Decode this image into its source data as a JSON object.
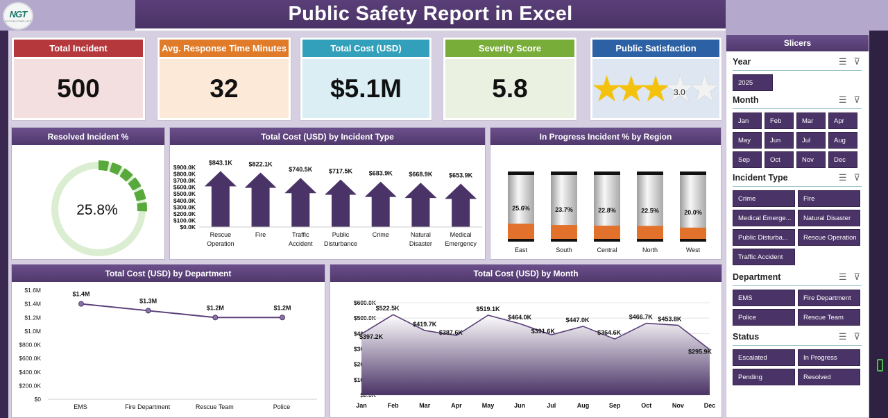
{
  "title": "Public Safety Report in Excel",
  "logo": {
    "text": "NGT",
    "subtext": "NEXTGEN TEMPLATES"
  },
  "kpis": [
    {
      "label": "Total Incident",
      "value": "500",
      "color": "#b5383d",
      "bg": "#f4dfe0"
    },
    {
      "label": "Avg. Response Time Minutes",
      "value": "32",
      "color": "#e07b2a",
      "bg": "#fde9d8"
    },
    {
      "label": "Total Cost (USD)",
      "value": "$5.1M",
      "color": "#33a0bb",
      "bg": "#daeef4"
    },
    {
      "label": "Severity Score",
      "value": "5.8",
      "color": "#79ad3a",
      "bg": "#eaf1e1"
    },
    {
      "label": "Public Satisfaction",
      "value": "3.0",
      "color": "#2d61a5",
      "bg": "#dde6f1",
      "stars": 3,
      "max_stars": 5
    }
  ],
  "panels": {
    "resolved": {
      "title": "Resolved Incident %",
      "value": "25.8%",
      "fraction": 0.258
    },
    "type": {
      "title": "Total Cost (USD) by Incident Type"
    },
    "region": {
      "title": "In Progress Incident % by Region"
    },
    "department": {
      "title": "Total Cost (USD) by Department"
    },
    "month": {
      "title": "Total Cost (USD) by Month"
    }
  },
  "chart_data": [
    {
      "type": "bar",
      "id": "type",
      "categories": [
        "Rescue Operation",
        "Fire",
        "Traffic Accident",
        "Public Disturbance",
        "Crime",
        "Natural Disaster",
        "Medical Emergency"
      ],
      "values": [
        843.1,
        822.1,
        740.5,
        717.5,
        683.9,
        668.9,
        653.9
      ],
      "value_labels": [
        "$843.1K",
        "$822.1K",
        "$740.5K",
        "$717.5K",
        "$683.9K",
        "$668.9K",
        "$653.9K"
      ],
      "yticks": [
        "$900.0K",
        "$800.0K",
        "$700.0K",
        "$600.0K",
        "$500.0K",
        "$400.0K",
        "$300.0K",
        "$200.0K",
        "$100.0K",
        "$0.0K"
      ],
      "ylim": [
        0,
        900
      ]
    },
    {
      "type": "bar",
      "id": "region",
      "categories": [
        "East",
        "South",
        "Central",
        "North",
        "West"
      ],
      "values": [
        25.6,
        23.7,
        22.8,
        22.5,
        20.0
      ],
      "value_labels": [
        "25.6%",
        "23.7%",
        "22.8%",
        "22.5%",
        "20.0%"
      ],
      "ylim": [
        0,
        100
      ]
    },
    {
      "type": "line",
      "id": "department",
      "categories": [
        "EMS",
        "Fire Department",
        "Rescue Team",
        "Police"
      ],
      "values": [
        1.4,
        1.3,
        1.2,
        1.2
      ],
      "value_labels": [
        "$1.4M",
        "$1.3M",
        "$1.2M",
        "$1.2M"
      ],
      "yticks": [
        "$1.6M",
        "$1.4M",
        "$1.2M",
        "$1.0M",
        "$800.0K",
        "$600.0K",
        "$400.0K",
        "$200.0K",
        "$0"
      ],
      "ylim": [
        0,
        1.6
      ]
    },
    {
      "type": "area",
      "id": "month",
      "categories": [
        "Jan",
        "Feb",
        "Mar",
        "Apr",
        "May",
        "Jun",
        "Jul",
        "Aug",
        "Sep",
        "Oct",
        "Nov",
        "Dec"
      ],
      "values": [
        397.2,
        522.5,
        419.7,
        387.6,
        519.1,
        464.0,
        391.6,
        447.0,
        364.6,
        466.7,
        453.8,
        295.9
      ],
      "value_labels": [
        "$397.2K",
        "$522.5K",
        "$419.7K",
        "$387.6K",
        "$519.1K",
        "$464.0K",
        "$391.6K",
        "$447.0K",
        "$364.6K",
        "$466.7K",
        "$453.8K",
        "$295.9K"
      ],
      "yticks": [
        "$600.0K",
        "$500.0K",
        "$400.0K",
        "$300.0K",
        "$200.0K",
        "$100.0K",
        "$0.0K"
      ],
      "ylim": [
        0,
        600
      ]
    }
  ],
  "slicers": {
    "title": "Slicers",
    "groups": [
      {
        "label": "Year",
        "cols": 1,
        "items": [
          "2025"
        ]
      },
      {
        "label": "Month",
        "cols": 4,
        "items": [
          "Jan",
          "Feb",
          "Mar",
          "Apr",
          "May",
          "Jun",
          "Jul",
          "Aug",
          "Sep",
          "Oct",
          "Nov",
          "Dec"
        ]
      },
      {
        "label": "Incident Type",
        "cols": 2,
        "items": [
          "Crime",
          "Fire",
          "Medical Emerge...",
          "Natural Disaster",
          "Public Disturba...",
          "Rescue Operation",
          "Traffic Accident"
        ]
      },
      {
        "label": "Department",
        "cols": 2,
        "items": [
          "EMS",
          "Fire Department",
          "Police",
          "Rescue Team"
        ]
      },
      {
        "label": "Status",
        "cols": 2,
        "items": [
          "Escalated",
          "In Progress",
          "Pending",
          "Resolved"
        ]
      }
    ]
  }
}
